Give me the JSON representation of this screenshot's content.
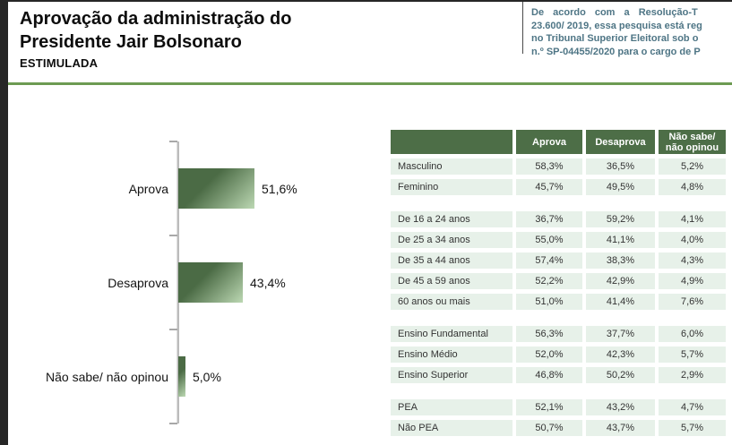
{
  "frame": {
    "bg": "#262626"
  },
  "header": {
    "title_line1": "Aprovação da administração do",
    "title_line2": "Presidente Jair Bolsonaro",
    "subtitle": "ESTIMULADA",
    "disclaimer_lines": [
      "De acordo com a Resolução-T",
      "23.600/ 2019, essa pesquisa está reg",
      "no Tribunal Superior Eleitoral sob o",
      "n.º SP-04455/2020 para o cargo de P"
    ],
    "disclaimer_color": "#4e7585",
    "rule_color": "#6d9b52"
  },
  "chart_data": {
    "type": "bar",
    "orientation": "horizontal",
    "title": "",
    "categories": [
      "Aprova",
      "Desaprova",
      "Não sabe/ não opinou"
    ],
    "values": [
      51.6,
      43.4,
      5.0
    ],
    "value_labels": [
      "51,6%",
      "43,4%",
      "5,0%"
    ],
    "unit": "%",
    "grid": false,
    "legend": false,
    "bar_gradient": [
      "#4b6b45",
      "#bcd8b3"
    ]
  },
  "table": {
    "header_bg": "#4d6e47",
    "row_bg": "#e7f1e9",
    "columns": [
      {
        "label": ""
      },
      {
        "label": "Aprova"
      },
      {
        "label": "Desaprova"
      },
      {
        "label": "Não sabe/\nnão opinou"
      }
    ],
    "groups": [
      {
        "rows": [
          [
            "Masculino",
            "58,3%",
            "36,5%",
            "5,2%"
          ],
          [
            "Feminino",
            "45,7%",
            "49,5%",
            "4,8%"
          ]
        ]
      },
      {
        "rows": [
          [
            "De 16 a 24 anos",
            "36,7%",
            "59,2%",
            "4,1%"
          ],
          [
            "De 25 a 34 anos",
            "55,0%",
            "41,1%",
            "4,0%"
          ],
          [
            "De 35 a 44 anos",
            "57,4%",
            "38,3%",
            "4,3%"
          ],
          [
            "De 45 a 59 anos",
            "52,2%",
            "42,9%",
            "4,9%"
          ],
          [
            "60 anos ou mais",
            "51,0%",
            "41,4%",
            "7,6%"
          ]
        ]
      },
      {
        "rows": [
          [
            "Ensino Fundamental",
            "56,3%",
            "37,7%",
            "6,0%"
          ],
          [
            "Ensino Médio",
            "52,0%",
            "42,3%",
            "5,7%"
          ],
          [
            "Ensino Superior",
            "46,8%",
            "50,2%",
            "2,9%"
          ]
        ]
      },
      {
        "rows": [
          [
            "PEA",
            "52,1%",
            "43,2%",
            "4,7%"
          ],
          [
            "Não PEA",
            "50,7%",
            "43,7%",
            "5,7%"
          ]
        ]
      }
    ]
  }
}
